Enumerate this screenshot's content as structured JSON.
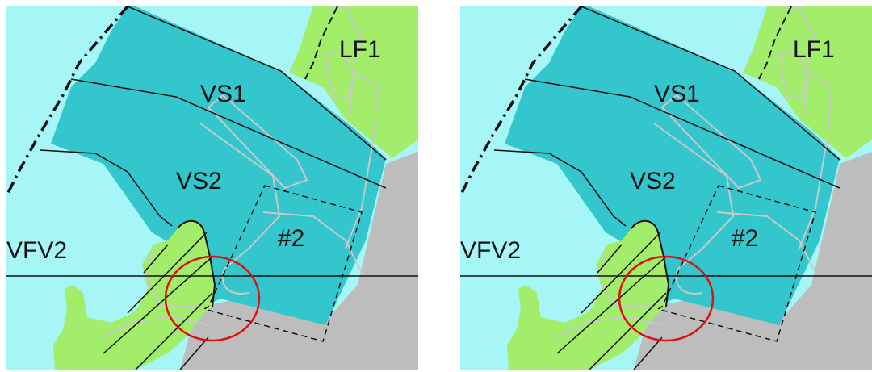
{
  "colors": {
    "water": "#a6f5f7",
    "vs_zone": "#33c7cd",
    "land_green": "#a2ee6a",
    "land_gray": "#bdbdbd",
    "contour": "#c9c9c9",
    "boundary_line": "#111111",
    "highlight_circle": "#dd1111"
  },
  "labels": {
    "lf1": "LF1",
    "vs1": "VS1",
    "vs2": "VS2",
    "vfv2": "VFV2",
    "site": "#2"
  },
  "panels": [
    {
      "id": "left",
      "highlight": "red circle"
    },
    {
      "id": "right",
      "highlight": "red circle"
    }
  ]
}
